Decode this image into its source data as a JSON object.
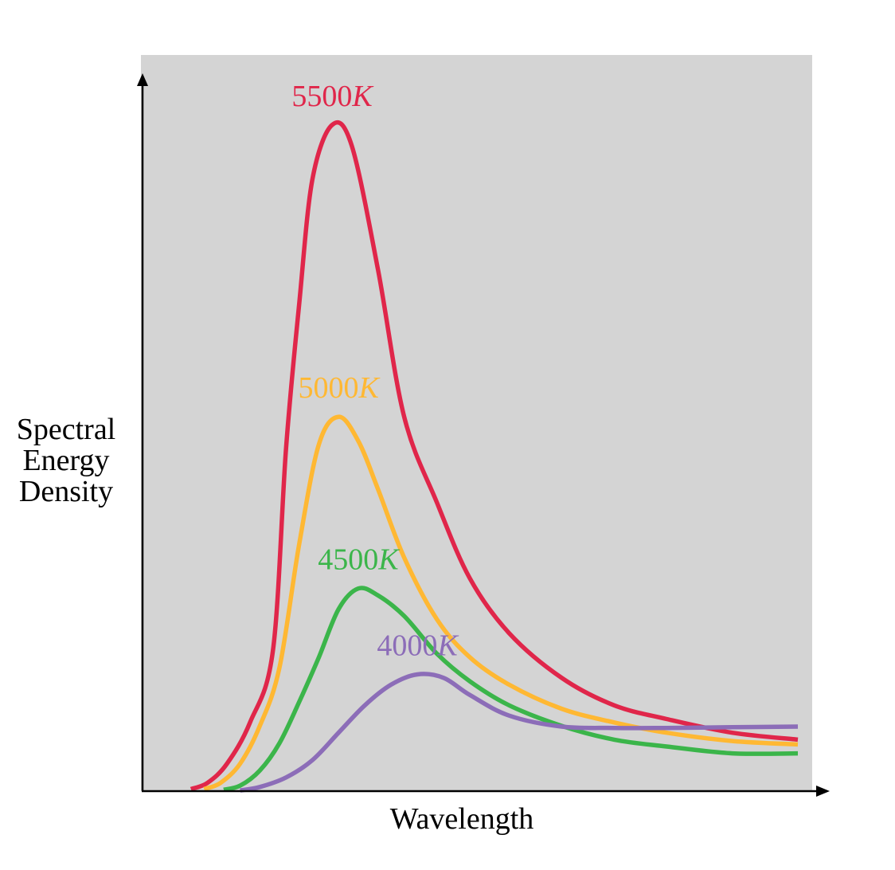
{
  "chart_data": {
    "type": "line",
    "title": "",
    "xlabel": "Wavelength",
    "ylabel_lines": [
      "Spectral",
      "Energy",
      "Density"
    ],
    "grid": false,
    "axis_ticks": false,
    "xlim": [
      0,
      100
    ],
    "ylim": [
      0,
      100
    ],
    "colors": {
      "background": "#d4d4d4",
      "axis": "#000000"
    },
    "series": [
      {
        "name": "5500K",
        "number": "5500",
        "unit": "K",
        "color": "#e0264a",
        "x": [
          7.5,
          10,
          13,
          16.5,
          20,
          22,
          24,
          26,
          29,
          32,
          36,
          40,
          45,
          50,
          56,
          64,
          72,
          80,
          90,
          100
        ],
        "y": [
          0.3,
          1.2,
          4,
          10,
          20.5,
          50,
          71,
          89,
          97,
          94,
          76,
          54.5,
          42,
          31,
          23,
          16.5,
          12.5,
          10.5,
          8.5,
          7.5
        ]
      },
      {
        "name": "5000K",
        "number": "5000",
        "unit": "K",
        "color": "#ffb833",
        "x": [
          9.5,
          12,
          15,
          18,
          21,
          24,
          27,
          30,
          33,
          36,
          40,
          45,
          50,
          56,
          64,
          72,
          80,
          90,
          100
        ],
        "y": [
          0.3,
          1.2,
          4,
          9.5,
          18,
          36,
          50.5,
          54.5,
          51,
          44,
          34,
          25,
          19.5,
          15.5,
          12,
          10,
          8.5,
          7.3,
          6.8
        ]
      },
      {
        "name": "4500K",
        "number": "4500",
        "unit": "K",
        "color": "#3bb54a",
        "x": [
          12.5,
          15,
          18,
          21,
          24,
          27,
          30,
          33,
          36,
          40,
          45,
          50,
          56,
          64,
          72,
          80,
          90,
          100
        ],
        "y": [
          0.2,
          0.8,
          3,
          7,
          13,
          19.5,
          26.5,
          29.5,
          28.5,
          25.5,
          20,
          16,
          12.5,
          9.5,
          7.5,
          6.5,
          5.5,
          5.5
        ]
      },
      {
        "name": "4000K",
        "number": "4000",
        "unit": "K",
        "color": "#8c6db8",
        "x": [
          15,
          18,
          22,
          26,
          30,
          34,
          38,
          42,
          46,
          50,
          56,
          64,
          72,
          80,
          90,
          100
        ],
        "y": [
          0.1,
          0.6,
          2,
          4.5,
          8.5,
          12.5,
          15.5,
          17,
          16.5,
          14,
          11,
          9.4,
          9.2,
          9.2,
          9.3,
          9.4
        ]
      }
    ]
  }
}
